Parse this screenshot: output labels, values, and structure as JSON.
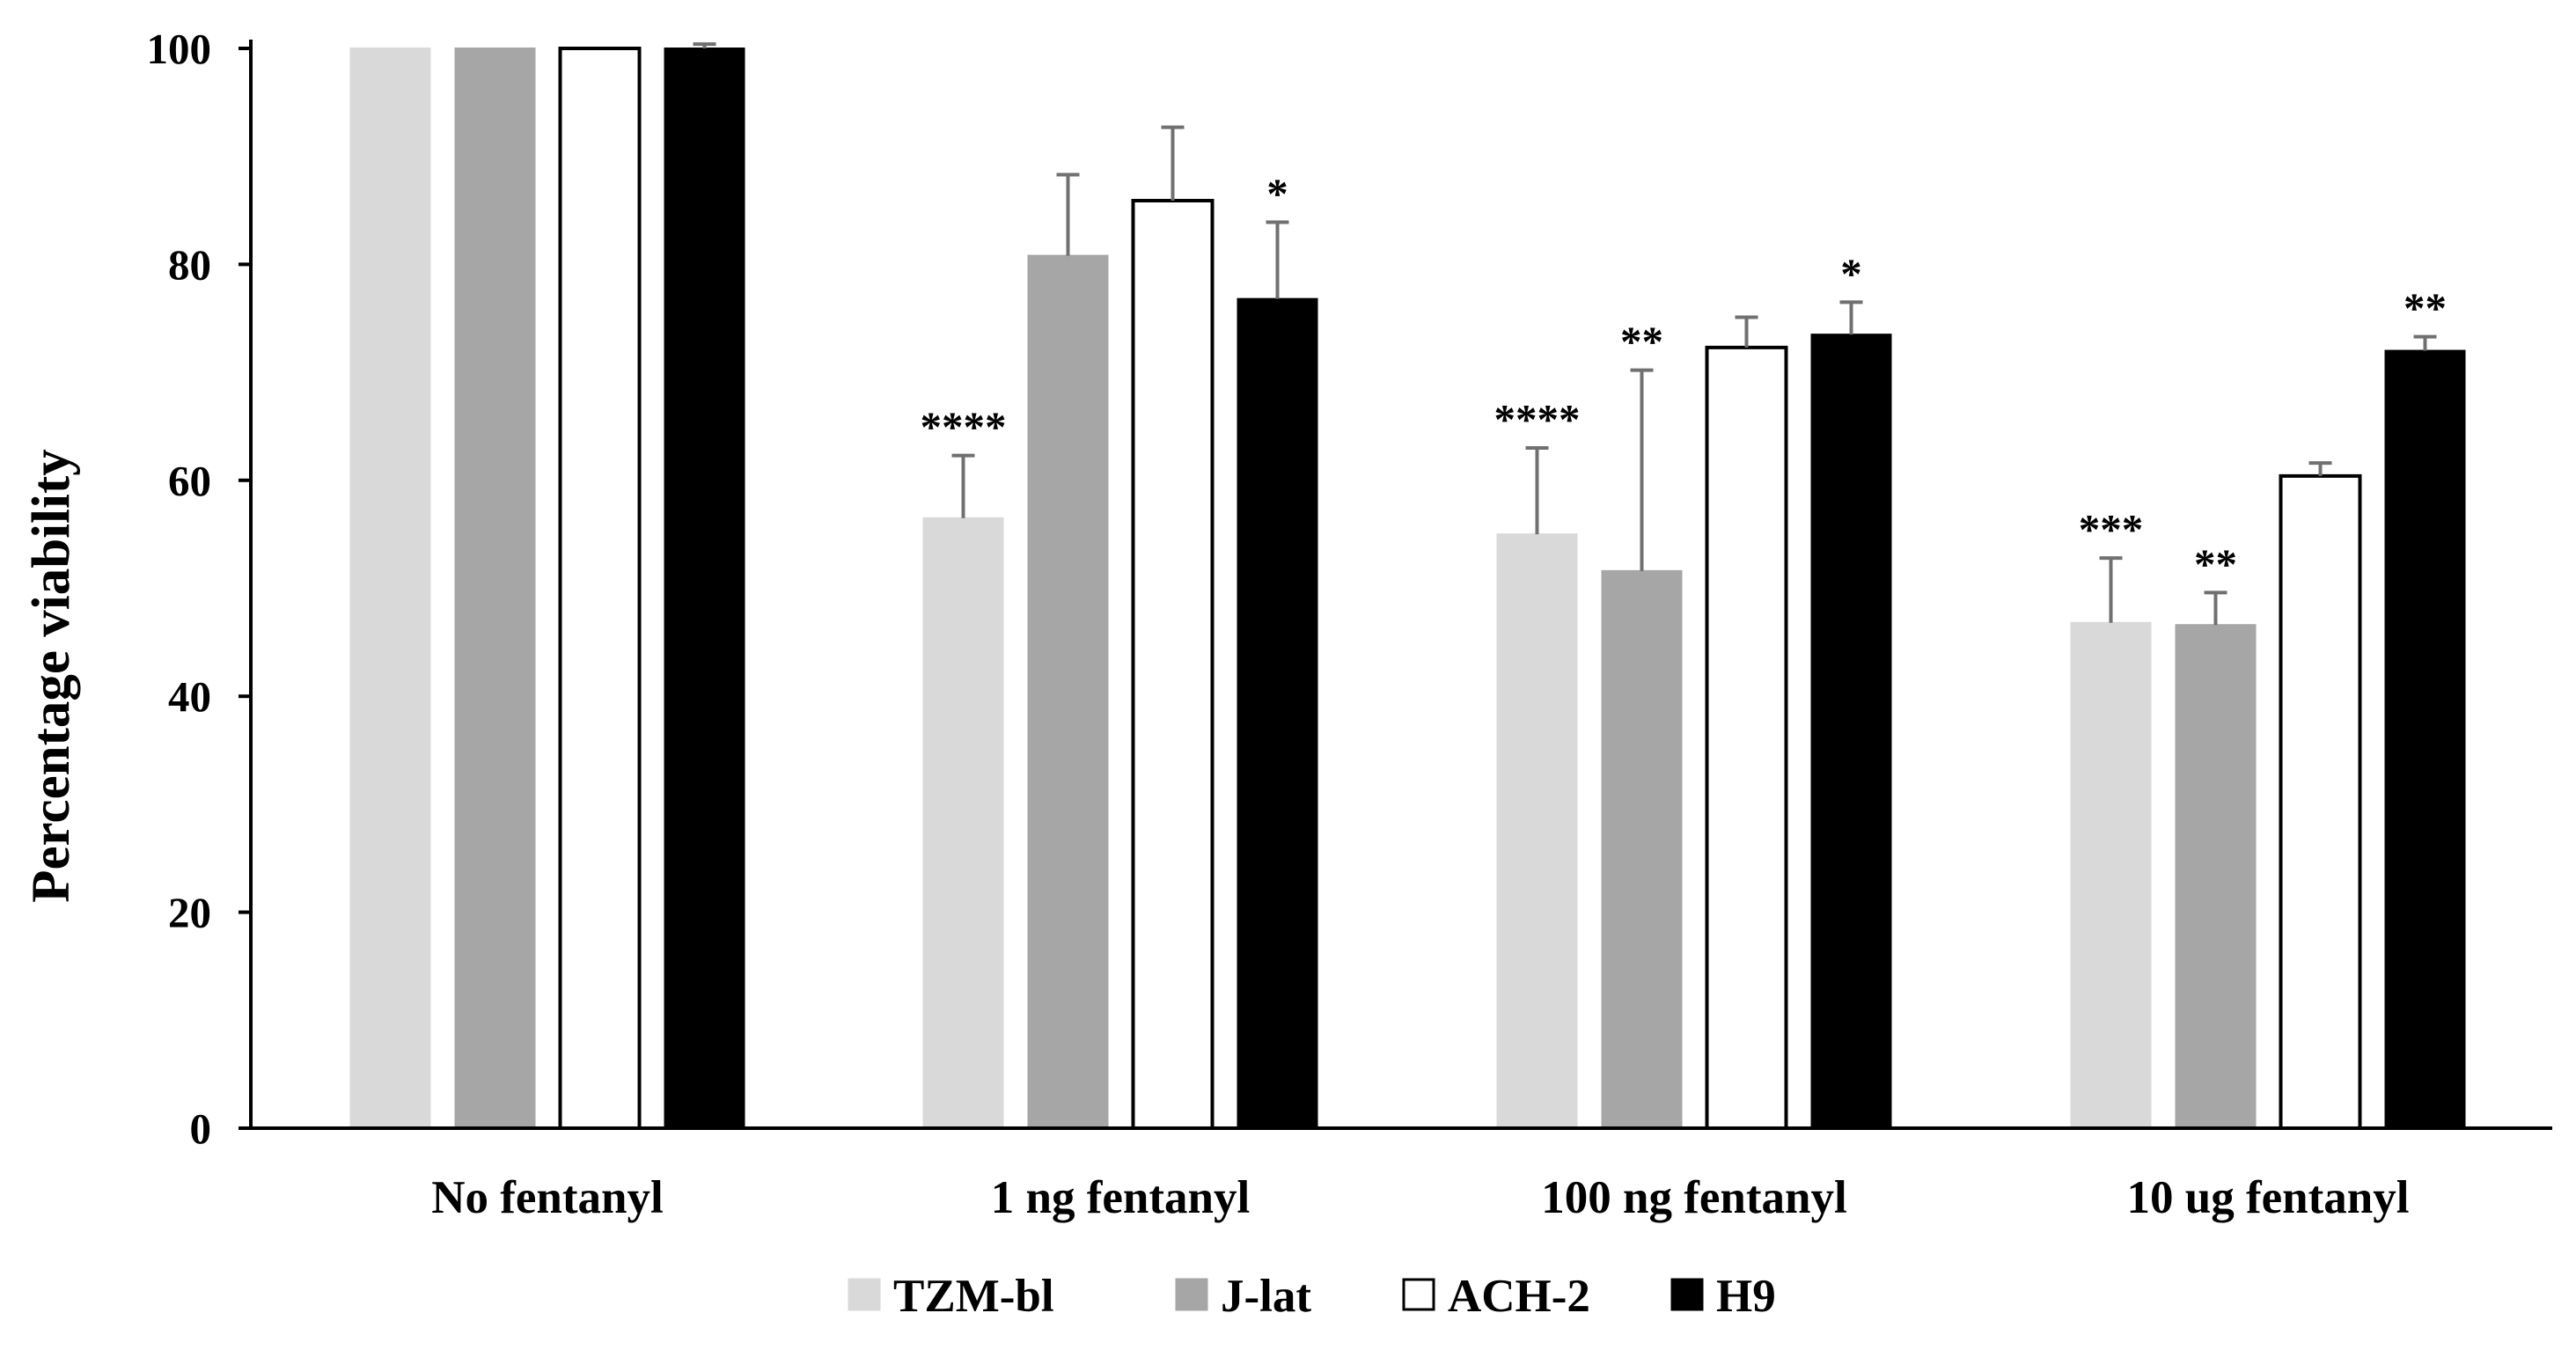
{
  "chart_data": {
    "type": "bar",
    "title": "",
    "xlabel": "",
    "ylabel": "Percentage viability",
    "ylim": [
      0,
      100
    ],
    "yticks": [
      0,
      20,
      40,
      60,
      80,
      100
    ],
    "grid": false,
    "legend_position": "bottom-center",
    "categories": [
      "No fentanyl",
      "1 ng fentanyl",
      "100 ng fentanyl",
      "10 ug fentanyl"
    ],
    "series": [
      {
        "name": "TZM-bl",
        "color": "#d9d9d9",
        "values": [
          100,
          56.5,
          55,
          46.8
        ],
        "errors": [
          0,
          5.8,
          8,
          6
        ],
        "significance": [
          "",
          "****",
          "****",
          "***"
        ]
      },
      {
        "name": "J-lat",
        "color": "#a6a6a6",
        "values": [
          100,
          80.8,
          51.6,
          46.6
        ],
        "errors": [
          0,
          7.5,
          18.6,
          3
        ],
        "significance": [
          "",
          "",
          "**",
          "**"
        ]
      },
      {
        "name": "ACH-2",
        "color": "#ffffff",
        "values": [
          100,
          85.9,
          72.3,
          60.4
        ],
        "errors": [
          0,
          6.8,
          2.8,
          1.2
        ],
        "significance": [
          "",
          "",
          "",
          ""
        ]
      },
      {
        "name": "H9",
        "color": "#000000",
        "values": [
          100,
          76.8,
          73.5,
          72
        ],
        "errors": [
          0.4,
          7.1,
          3,
          1.3
        ],
        "significance": [
          "",
          "*",
          "*",
          "**"
        ]
      }
    ]
  }
}
